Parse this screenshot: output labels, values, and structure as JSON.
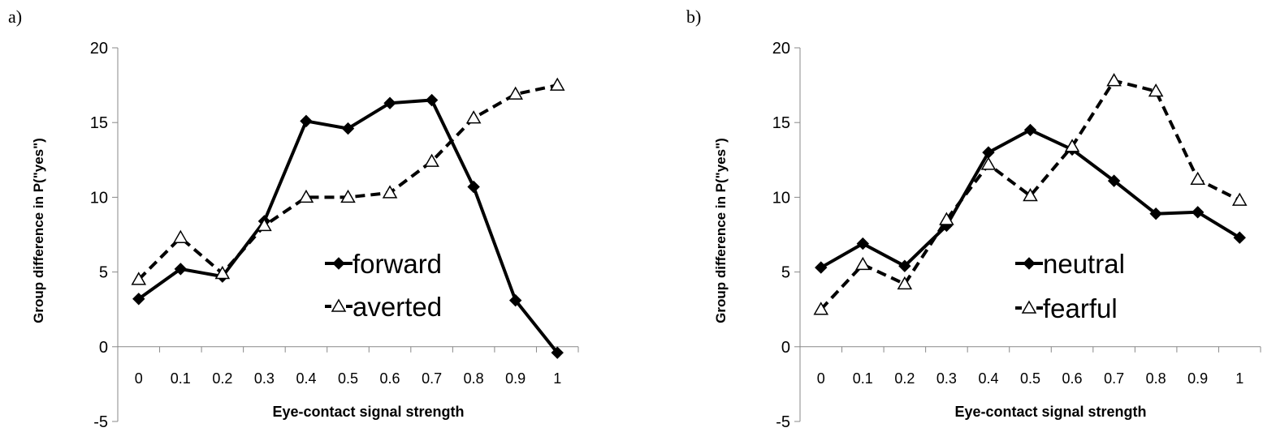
{
  "chart_data": [
    {
      "panel": "a)",
      "type": "line",
      "xlabel": "Eye-contact signal strength",
      "ylabel": "Group difference in P(\"yes\")",
      "ylim": [
        -5,
        20
      ],
      "yticks": [
        "-5",
        "0",
        "5",
        "10",
        "15",
        "20"
      ],
      "categories": [
        "0",
        "0.1",
        "0.2",
        "0.3",
        "0.4",
        "0.5",
        "0.6",
        "0.7",
        "0.8",
        "0.9",
        "1"
      ],
      "legend_position": "bottom-right-inside",
      "series": [
        {
          "name": "forward",
          "style": "solid",
          "marker": "filled-diamond",
          "values": [
            3.2,
            5.2,
            4.7,
            8.4,
            15.1,
            14.6,
            16.3,
            16.5,
            10.7,
            3.1,
            -0.4
          ]
        },
        {
          "name": "averted",
          "style": "dashed",
          "marker": "open-triangle",
          "values": [
            4.5,
            7.3,
            4.9,
            8.1,
            10.0,
            10.0,
            10.3,
            12.4,
            15.3,
            16.9,
            17.5
          ]
        }
      ]
    },
    {
      "panel": "b)",
      "type": "line",
      "xlabel": "Eye-contact signal strength",
      "ylabel": "Group difference in P(\"yes\")",
      "ylim": [
        -5,
        20
      ],
      "yticks": [
        "-5",
        "0",
        "5",
        "10",
        "15",
        "20"
      ],
      "categories": [
        "0",
        "0.1",
        "0.2",
        "0.3",
        "0.4",
        "0.5",
        "0.6",
        "0.7",
        "0.8",
        "0.9",
        "1"
      ],
      "legend_position": "bottom-center-inside",
      "series": [
        {
          "name": "neutral",
          "style": "solid",
          "marker": "filled-diamond",
          "values": [
            5.3,
            6.9,
            5.4,
            8.1,
            13.0,
            14.5,
            13.2,
            11.1,
            8.9,
            9.0,
            7.3
          ]
        },
        {
          "name": "fearful",
          "style": "dashed",
          "marker": "open-triangle",
          "values": [
            2.5,
            5.5,
            4.2,
            8.5,
            12.2,
            10.1,
            13.4,
            17.8,
            17.1,
            11.2,
            9.8
          ]
        }
      ]
    }
  ]
}
